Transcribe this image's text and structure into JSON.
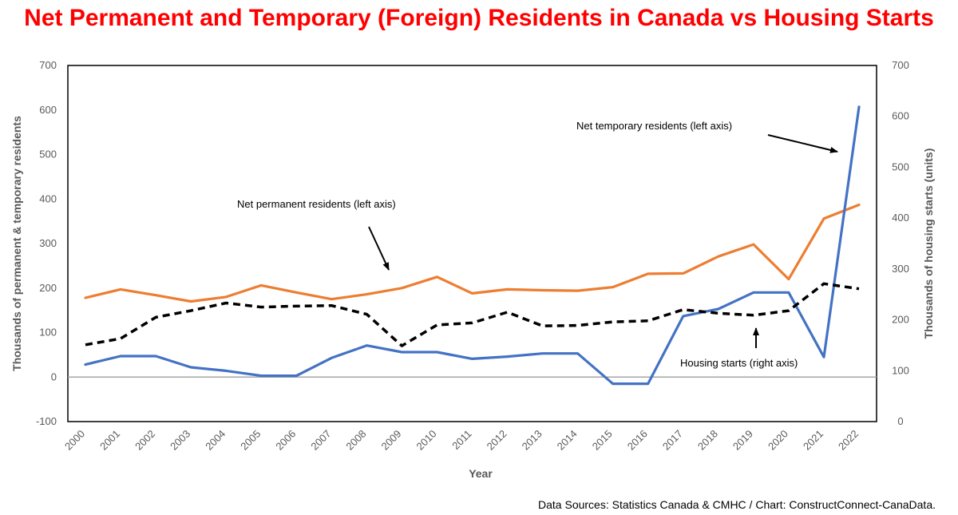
{
  "title": "Net Permanent and Temporary (Foreign) Residents in Canada vs Housing Starts",
  "source": "Data Sources: Statistics Canada & CMHC / Chart: ConstructConnect-CanaData.",
  "chart_data": {
    "type": "line",
    "title": "Net Permanent and Temporary (Foreign) Residents in Canada vs Housing Starts",
    "xlabel": "Year",
    "ylabel_left": "Thousands of permanent & temporary residents",
    "ylabel_right": "Thousands of housing starts (units)",
    "x": [
      "2000",
      "2001",
      "2002",
      "2003",
      "2004",
      "2005",
      "2006",
      "2007",
      "2008",
      "2009",
      "2010",
      "2011",
      "2012",
      "2013",
      "2014",
      "2015",
      "2016",
      "2017",
      "2018",
      "2019",
      "2020",
      "2021",
      "2022"
    ],
    "ylim_left": [
      -100,
      700
    ],
    "ylim_right": [
      0,
      700
    ],
    "yticks_left": [
      "-100",
      "0",
      "100",
      "200",
      "300",
      "400",
      "500",
      "600",
      "700"
    ],
    "yticks_right": [
      "0",
      "100",
      "200",
      "300",
      "400",
      "500",
      "600",
      "700"
    ],
    "grid": false,
    "series": [
      {
        "name": "Net permanent residents (left axis)",
        "axis": "left",
        "color": "#ed7d31",
        "style": "solid",
        "values": [
          178,
          197,
          184,
          170,
          180,
          206,
          190,
          175,
          186,
          200,
          225,
          188,
          197,
          195,
          194,
          202,
          232,
          233,
          271,
          298,
          220,
          356,
          387
        ]
      },
      {
        "name": "Net temporary residents (left axis)",
        "axis": "left",
        "color": "#4472c4",
        "style": "solid",
        "values": [
          28,
          47,
          47,
          22,
          14,
          3,
          3,
          43,
          71,
          56,
          56,
          41,
          46,
          53,
          53,
          -15,
          -15,
          137,
          153,
          190,
          190,
          45,
          607
        ]
      },
      {
        "name": "Housing starts (right axis)",
        "axis": "right",
        "color": "#000000",
        "style": "dashed",
        "values": [
          151,
          163,
          205,
          218,
          233,
          225,
          227,
          228,
          211,
          149,
          190,
          194,
          215,
          188,
          189,
          196,
          198,
          220,
          213,
          209,
          218,
          271,
          261
        ]
      }
    ],
    "annotations": [
      {
        "text": "Net permanent residents (left axis)"
      },
      {
        "text": "Net temporary residents (left axis)"
      },
      {
        "text": "Housing starts (right axis)"
      }
    ]
  }
}
